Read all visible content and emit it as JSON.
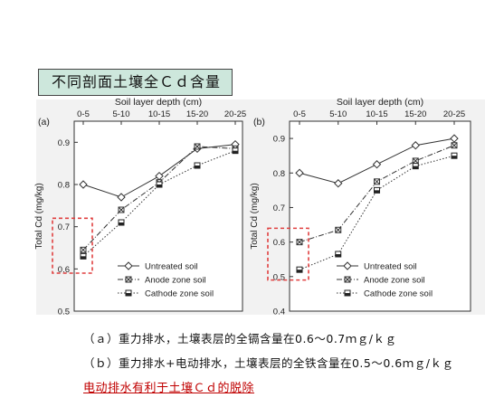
{
  "title": "不同剖面土壤全Ｃｄ含量",
  "chart_data": [
    {
      "type": "line",
      "panel_label": "(a)",
      "top_axis_label": "Soil layer depth (cm)",
      "ylabel": "Total Cd (mg/kg)",
      "categories": [
        "0-5",
        "5-10",
        "10-15",
        "15-20",
        "20-25"
      ],
      "ylim": [
        0.5,
        0.95
      ],
      "yticks": [
        "0.5",
        "0.6",
        "0.7",
        "0.8",
        "0.9"
      ],
      "series": [
        {
          "name": "Untreated soil",
          "marker": "diamond",
          "dash": "solid",
          "values": [
            0.8,
            0.77,
            0.82,
            0.885,
            0.895
          ]
        },
        {
          "name": "Anode zone soil",
          "marker": "crossed-square",
          "dash": "dashdot",
          "values": [
            0.645,
            0.74,
            0.805,
            0.89,
            0.885
          ]
        },
        {
          "name": "Cathode zone soil",
          "marker": "half-filled-square",
          "dash": "dotted",
          "values": [
            0.63,
            0.71,
            0.8,
            0.845,
            0.88
          ]
        }
      ],
      "highlight_category": "0-5",
      "highlight_range": [
        0.59,
        0.72
      ]
    },
    {
      "type": "line",
      "panel_label": "(b)",
      "top_axis_label": "Soil layer depth (cm)",
      "ylabel": "Total Cd (mg/kg)",
      "categories": [
        "0-5",
        "5-10",
        "10-15",
        "15-20",
        "20-25"
      ],
      "ylim": [
        0.4,
        0.95
      ],
      "yticks": [
        "0.4",
        "0.5",
        "0.6",
        "0.7",
        "0.8",
        "0.9"
      ],
      "series": [
        {
          "name": "Untreated soil",
          "marker": "diamond",
          "dash": "solid",
          "values": [
            0.8,
            0.77,
            0.825,
            0.88,
            0.9
          ]
        },
        {
          "name": "Anode zone soil",
          "marker": "crossed-square",
          "dash": "dashdot",
          "values": [
            0.6,
            0.635,
            0.775,
            0.835,
            0.88
          ]
        },
        {
          "name": "Cathode zone soil",
          "marker": "half-filled-square",
          "dash": "dotted",
          "values": [
            0.52,
            0.565,
            0.75,
            0.82,
            0.85
          ]
        }
      ],
      "highlight_category": "0-5",
      "highlight_range": [
        0.49,
        0.64
      ]
    }
  ],
  "captions": [
    "（ａ）重力排水，土壤表层的全镉含量在0.6～0.7ｍｇ/ｋｇ",
    "（ｂ）重力排水+电动排水，土壤表层的全铁含量在0.5～0.6ｍｇ/ｋｇ"
  ],
  "conclusion": "电动排水有利于土壤Ｃｄ的脱除"
}
